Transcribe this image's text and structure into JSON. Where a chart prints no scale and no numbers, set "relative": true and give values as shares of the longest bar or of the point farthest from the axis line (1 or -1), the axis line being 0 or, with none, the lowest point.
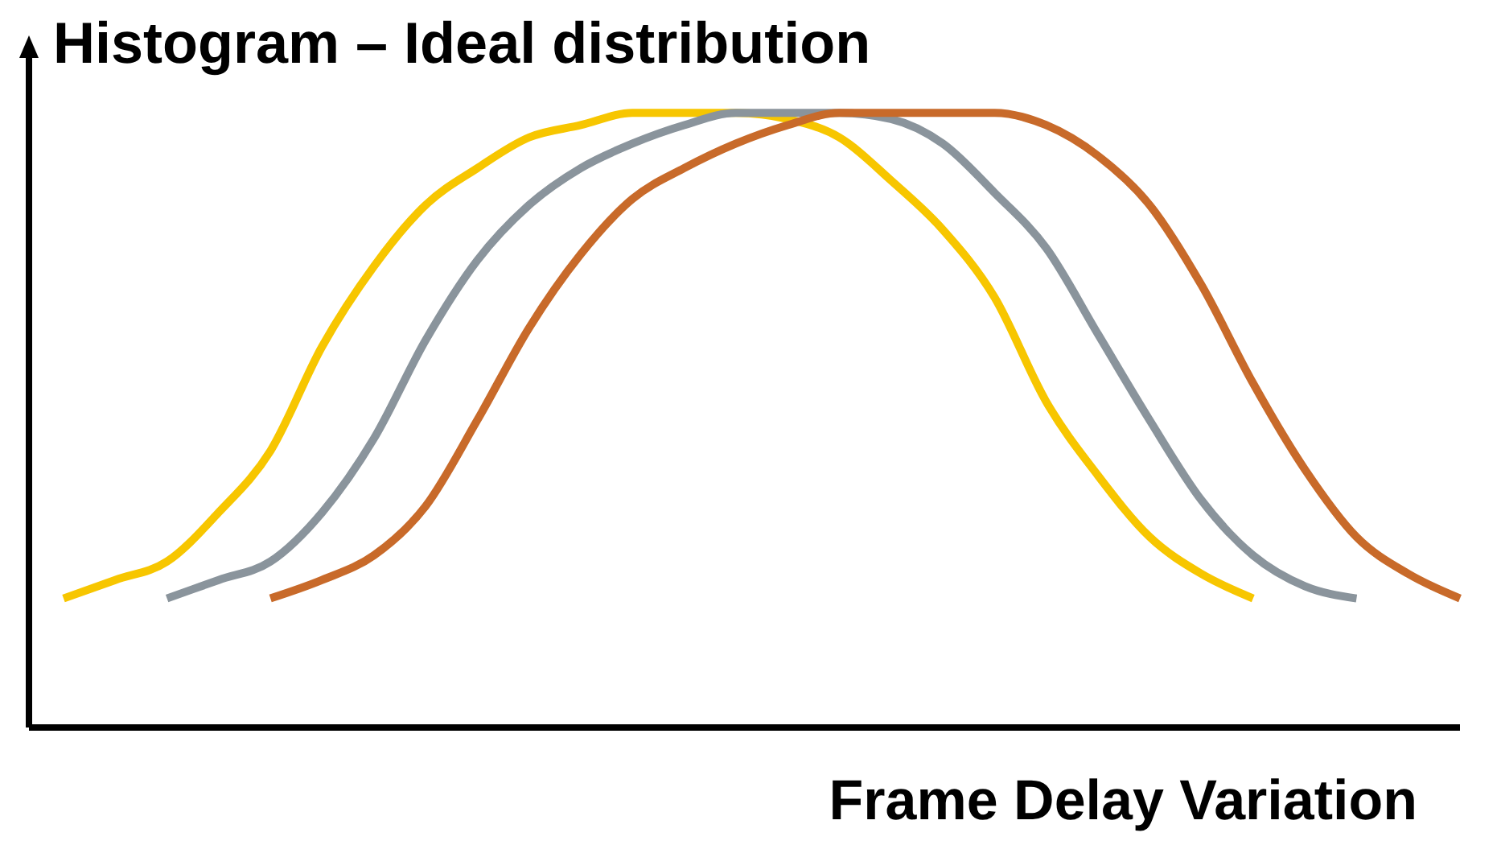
{
  "chart_data": {
    "type": "line",
    "title": "Histogram – Ideal distribution",
    "xlabel": "Frame Delay Variation",
    "relative": true,
    "categories": [
      null,
      null,
      null,
      null,
      null,
      null,
      null,
      null,
      null,
      null,
      null,
      null,
      null,
      null,
      null,
      null,
      null,
      null,
      null,
      null,
      null,
      null,
      null,
      null,
      null,
      null,
      null,
      null
    ],
    "series": [
      {
        "color": "#f7c600",
        "values": [
          0.21,
          0.24,
          0.27,
          0.35,
          0.45,
          0.62,
          0.75,
          0.85,
          0.91,
          0.96,
          0.98,
          1,
          1,
          1,
          0.99,
          0.96,
          0.89,
          0.81,
          0.7,
          0.53,
          0.41,
          0.31,
          0.25,
          0.21,
          null,
          null,
          null,
          null
        ]
      },
      {
        "color": "#8a949c",
        "values": [
          null,
          null,
          0.21,
          0.24,
          0.27,
          0.35,
          0.47,
          0.63,
          0.76,
          0.85,
          0.91,
          0.95,
          0.98,
          1,
          1,
          1,
          0.99,
          0.95,
          0.87,
          0.78,
          0.64,
          0.5,
          0.37,
          0.28,
          0.23,
          0.21,
          null,
          null
        ]
      },
      {
        "color": "#c86a2a",
        "values": [
          null,
          null,
          null,
          null,
          0.21,
          0.24,
          0.28,
          0.36,
          0.5,
          0.65,
          0.77,
          0.86,
          0.91,
          0.95,
          0.98,
          1,
          1,
          1,
          1,
          0.98,
          0.93,
          0.85,
          0.72,
          0.56,
          0.42,
          0.31,
          0.25,
          0.21
        ]
      }
    ],
    "marker": "none",
    "line_style": "solid"
  }
}
